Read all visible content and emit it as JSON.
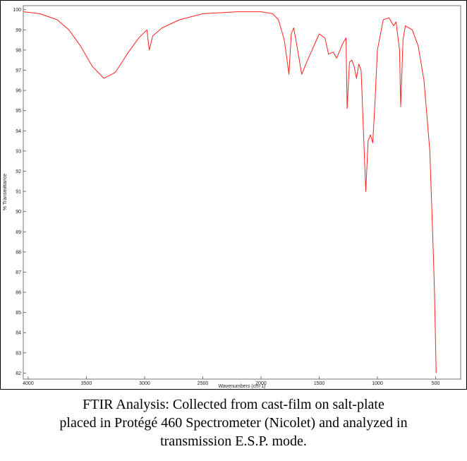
{
  "chart_data": {
    "type": "line",
    "x_label": "Wavenumbers (cm-1)",
    "y_label": "% Transmittance",
    "xlim": [
      4042,
      285
    ],
    "ylim": [
      81.7,
      100.2
    ],
    "xticks": [
      4000,
      3500,
      3000,
      2500,
      2000,
      1500,
      1000,
      500
    ],
    "yticks": [
      82,
      83,
      84,
      85,
      86,
      87,
      88,
      89,
      90,
      91,
      92,
      93,
      94,
      95,
      96,
      97,
      98,
      99,
      100
    ],
    "series": [
      {
        "color": "#ff2020",
        "x": [
          4040,
          3900,
          3750,
          3650,
          3550,
          3450,
          3350,
          3250,
          3150,
          3050,
          2980,
          2960,
          2930,
          2850,
          2700,
          2500,
          2200,
          2000,
          1900,
          1850,
          1800,
          1760,
          1740,
          1720,
          1700,
          1650,
          1600,
          1500,
          1450,
          1420,
          1380,
          1350,
          1300,
          1270,
          1260,
          1240,
          1220,
          1200,
          1180,
          1160,
          1140,
          1100,
          1080,
          1060,
          1040,
          1020,
          1000,
          950,
          900,
          860,
          840,
          810,
          800,
          780,
          760,
          700,
          650,
          600,
          550,
          520,
          510,
          495
        ],
        "values": [
          99.9,
          99.8,
          99.5,
          99.0,
          98.2,
          97.2,
          96.6,
          96.9,
          97.8,
          98.6,
          99.0,
          98.0,
          98.7,
          99.1,
          99.5,
          99.8,
          99.9,
          99.9,
          99.8,
          99.5,
          98.5,
          96.8,
          98.8,
          99.1,
          98.5,
          96.8,
          97.5,
          98.8,
          98.6,
          97.8,
          97.9,
          97.6,
          98.3,
          98.6,
          95.1,
          97.4,
          97.5,
          97.2,
          96.6,
          97.3,
          97.0,
          91.0,
          93.5,
          93.8,
          93.4,
          95.5,
          98.0,
          99.5,
          99.6,
          99.2,
          99.4,
          98.0,
          95.2,
          98.5,
          99.2,
          99.0,
          98.2,
          96.5,
          93.0,
          88.0,
          86.0,
          82.0
        ]
      }
    ]
  },
  "caption": [
    "FTIR Analysis: Collected from cast-film on salt-plate",
    "placed in Protégé 460 Spectrometer (Nicolet) and analyzed in",
    "transmission E.S.P. mode."
  ]
}
